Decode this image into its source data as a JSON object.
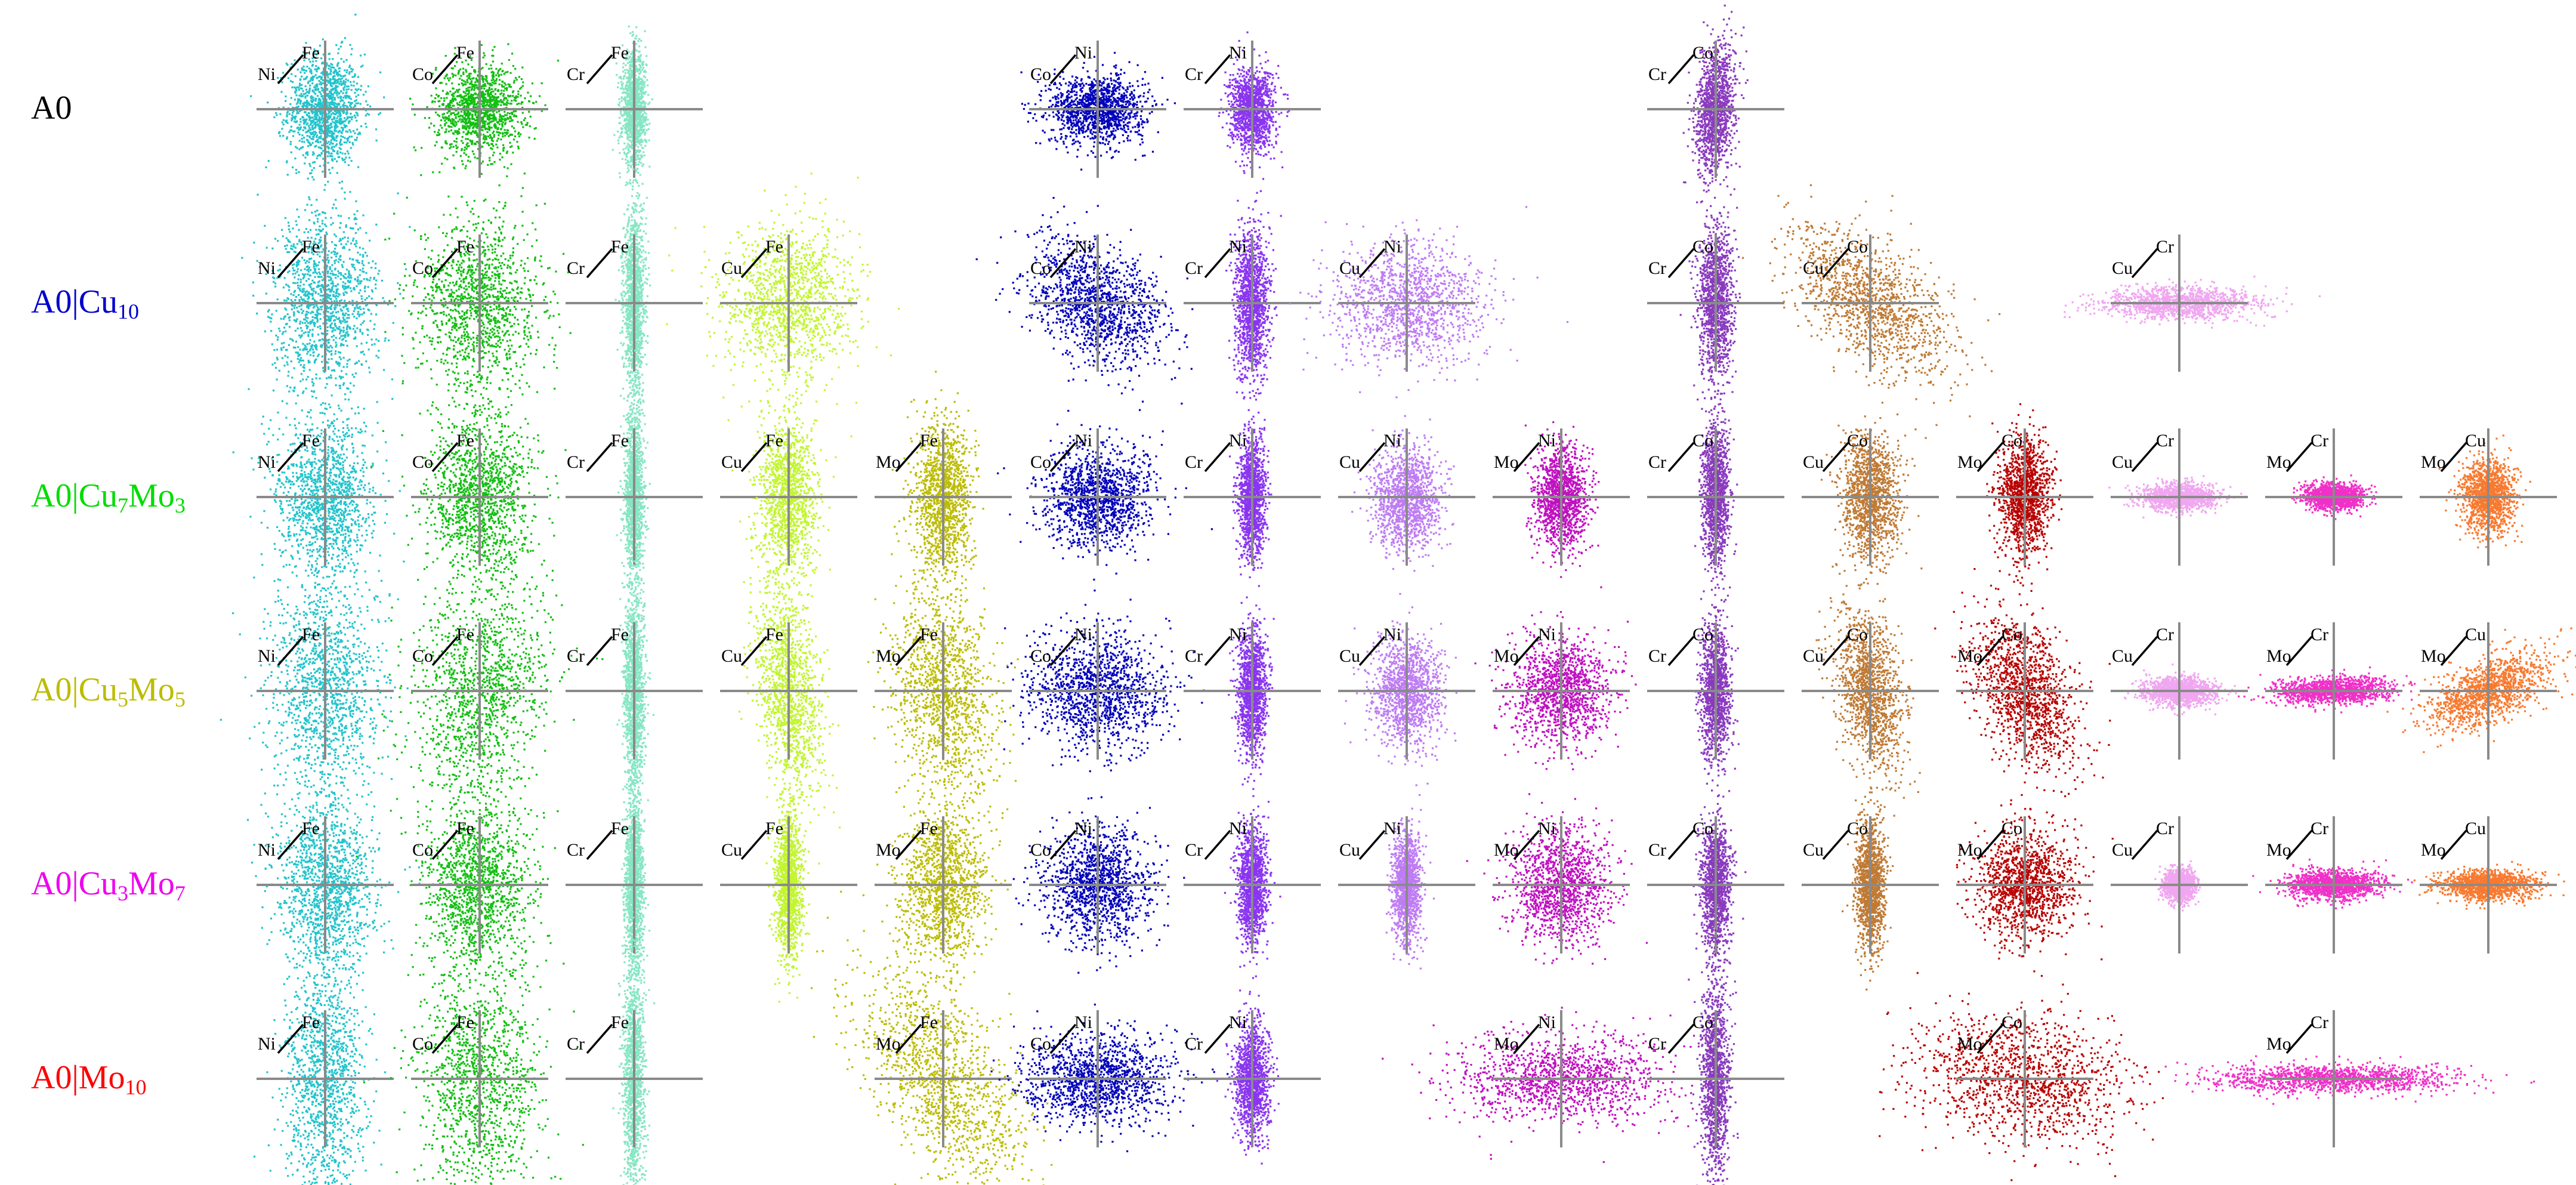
{
  "chart_data": {
    "type": "scatter",
    "description_note": "",
    "columns": [
      {
        "pair": "Fe-Ni",
        "x_label": "Ni",
        "y_label": "Fe",
        "color": "#22c4cc"
      },
      {
        "pair": "Fe-Co",
        "x_label": "Co",
        "y_label": "Fe",
        "color": "#12bf12"
      },
      {
        "pair": "Fe-Cr",
        "x_label": "Cr",
        "y_label": "Fe",
        "color": "#86e6c4"
      },
      {
        "pair": "Fe-Cu",
        "x_label": "Cu",
        "y_label": "Fe",
        "color": "#c2f532"
      },
      {
        "pair": "Fe-Mo",
        "x_label": "Mo",
        "y_label": "Fe",
        "color": "#bcbc00"
      },
      {
        "pair": "Ni-Co",
        "x_label": "Co",
        "y_label": "Ni",
        "color": "#0000bb"
      },
      {
        "pair": "Ni-Cr",
        "x_label": "Cr",
        "y_label": "Ni",
        "color": "#8a35f0"
      },
      {
        "pair": "Ni-Cu",
        "x_label": "Cu",
        "y_label": "Ni",
        "color": "#be7cf3"
      },
      {
        "pair": "Ni-Mo",
        "x_label": "Mo",
        "y_label": "Ni",
        "color": "#c010c0"
      },
      {
        "pair": "Co-Cr",
        "x_label": "Cr",
        "y_label": "Co",
        "color": "#8a3abf"
      },
      {
        "pair": "Co-Cu",
        "x_label": "Cu",
        "y_label": "Co",
        "color": "#bf7a35"
      },
      {
        "pair": "Co-Mo",
        "x_label": "Mo",
        "y_label": "Co",
        "color": "#b80000"
      },
      {
        "pair": "Cr-Cu",
        "x_label": "Cu",
        "y_label": "Cr",
        "color": "#f0a6f0"
      },
      {
        "pair": "Cr-Mo",
        "x_label": "Mo",
        "y_label": "Cr",
        "color": "#f030c8"
      },
      {
        "pair": "Cu-Mo",
        "x_label": "Mo",
        "y_label": "Cu",
        "color": "#f77a30"
      }
    ],
    "rows": [
      {
        "label": {
          "base": "A0",
          "parts": []
        },
        "color": "#000000",
        "plots": [
          {
            "col": 0,
            "sx": 0.28,
            "sy": 0.42,
            "rho": 0.0
          },
          {
            "col": 1,
            "sx": 0.33,
            "sy": 0.34,
            "rho": 0.0
          },
          {
            "col": 2,
            "sx": 0.09,
            "sy": 0.42,
            "rho": 0.0
          },
          {
            "col": 5,
            "sx": 0.36,
            "sy": 0.26,
            "rho": 0.0
          },
          {
            "col": 6,
            "sx": 0.17,
            "sy": 0.31,
            "rho": 0.0
          },
          {
            "col": 9,
            "sx": 0.15,
            "sy": 0.48,
            "rho": 0.25
          }
        ]
      },
      {
        "label": {
          "base": "A0|",
          "parts": [
            [
              "Cu",
              "10"
            ]
          ]
        },
        "color": "#0000cc",
        "plots": [
          {
            "col": 0,
            "sx": 0.4,
            "sy": 0.68,
            "rho": 0.0
          },
          {
            "col": 1,
            "sx": 0.46,
            "sy": 0.68,
            "rho": 0.0
          },
          {
            "col": 2,
            "sx": 0.08,
            "sy": 0.68,
            "rho": 0.0
          },
          {
            "col": 3,
            "sx": 0.5,
            "sy": 0.6,
            "rho": 0.05
          },
          {
            "col": 5,
            "sx": 0.52,
            "sy": 0.46,
            "rho": -0.3
          },
          {
            "col": 6,
            "sx": 0.13,
            "sy": 0.56,
            "rho": 0.0
          },
          {
            "col": 7,
            "sx": 0.58,
            "sy": 0.46,
            "rho": 0.0
          },
          {
            "col": 9,
            "sx": 0.13,
            "sy": 0.58,
            "rho": 0.0
          },
          {
            "col": 10,
            "sx": 0.6,
            "sy": 0.58,
            "rho": -0.55
          },
          {
            "col": 12,
            "sx": 0.58,
            "sy": 0.12,
            "rho": 0.0
          }
        ]
      },
      {
        "label": {
          "base": "A0|",
          "parts": [
            [
              "Cu",
              "7"
            ],
            [
              "Mo",
              "3"
            ]
          ]
        },
        "color": "#00dd00",
        "plots": [
          {
            "col": 0,
            "sx": 0.36,
            "sy": 0.6,
            "rho": 0.0
          },
          {
            "col": 1,
            "sx": 0.4,
            "sy": 0.62,
            "rho": 0.0
          },
          {
            "col": 2,
            "sx": 0.07,
            "sy": 0.62,
            "rho": 0.0
          },
          {
            "col": 3,
            "sx": 0.22,
            "sy": 0.6,
            "rho": 0.0
          },
          {
            "col": 4,
            "sx": 0.22,
            "sy": 0.6,
            "rho": 0.0
          },
          {
            "col": 5,
            "sx": 0.42,
            "sy": 0.38,
            "rho": 0.0
          },
          {
            "col": 6,
            "sx": 0.1,
            "sy": 0.45,
            "rho": 0.0
          },
          {
            "col": 7,
            "sx": 0.25,
            "sy": 0.38,
            "rho": 0.0
          },
          {
            "col": 8,
            "sx": 0.2,
            "sy": 0.38,
            "rho": 0.0
          },
          {
            "col": 9,
            "sx": 0.1,
            "sy": 0.5,
            "rho": 0.0
          },
          {
            "col": 10,
            "sx": 0.22,
            "sy": 0.48,
            "rho": 0.0
          },
          {
            "col": 11,
            "sx": 0.2,
            "sy": 0.45,
            "rho": 0.0
          },
          {
            "col": 12,
            "sx": 0.28,
            "sy": 0.1,
            "rho": 0.0
          },
          {
            "col": 13,
            "sx": 0.22,
            "sy": 0.1,
            "rho": 0.0
          },
          {
            "col": 14,
            "sx": 0.2,
            "sy": 0.28,
            "rho": 0.0
          }
        ]
      },
      {
        "label": {
          "base": "A0|",
          "parts": [
            [
              "Cu",
              "5"
            ],
            [
              "Mo",
              "5"
            ]
          ]
        },
        "color": "#bcbc00",
        "plots": [
          {
            "col": 0,
            "sx": 0.42,
            "sy": 0.82,
            "rho": 0.0
          },
          {
            "col": 1,
            "sx": 0.52,
            "sy": 0.82,
            "rho": 0.2
          },
          {
            "col": 2,
            "sx": 0.08,
            "sy": 0.78,
            "rho": 0.0
          },
          {
            "col": 3,
            "sx": 0.25,
            "sy": 0.78,
            "rho": -0.35
          },
          {
            "col": 4,
            "sx": 0.38,
            "sy": 0.8,
            "rho": -0.25
          },
          {
            "col": 5,
            "sx": 0.5,
            "sy": 0.46,
            "rho": 0.0
          },
          {
            "col": 6,
            "sx": 0.11,
            "sy": 0.46,
            "rho": 0.0
          },
          {
            "col": 7,
            "sx": 0.26,
            "sy": 0.42,
            "rho": 0.0
          },
          {
            "col": 8,
            "sx": 0.38,
            "sy": 0.42,
            "rho": 0.0
          },
          {
            "col": 9,
            "sx": 0.11,
            "sy": 0.52,
            "rho": 0.0
          },
          {
            "col": 10,
            "sx": 0.26,
            "sy": 0.62,
            "rho": -0.35
          },
          {
            "col": 11,
            "sx": 0.4,
            "sy": 0.58,
            "rho": -0.45
          },
          {
            "col": 12,
            "sx": 0.26,
            "sy": 0.11,
            "rho": 0.0
          },
          {
            "col": 13,
            "sx": 0.44,
            "sy": 0.1,
            "rho": 0.15
          },
          {
            "col": 14,
            "sx": 0.46,
            "sy": 0.28,
            "rho": 0.55
          }
        ]
      },
      {
        "label": {
          "base": "A0|",
          "parts": [
            [
              "Cu",
              "3"
            ],
            [
              "Mo",
              "7"
            ]
          ]
        },
        "color": "#ee00ee",
        "plots": [
          {
            "col": 0,
            "sx": 0.37,
            "sy": 0.62,
            "rho": 0.0
          },
          {
            "col": 1,
            "sx": 0.4,
            "sy": 0.62,
            "rho": 0.0
          },
          {
            "col": 2,
            "sx": 0.07,
            "sy": 0.62,
            "rho": 0.0
          },
          {
            "col": 3,
            "sx": 0.1,
            "sy": 0.55,
            "rho": 0.0
          },
          {
            "col": 4,
            "sx": 0.32,
            "sy": 0.62,
            "rho": 0.0
          },
          {
            "col": 5,
            "sx": 0.4,
            "sy": 0.42,
            "rho": 0.0
          },
          {
            "col": 6,
            "sx": 0.11,
            "sy": 0.45,
            "rho": 0.0
          },
          {
            "col": 7,
            "sx": 0.11,
            "sy": 0.42,
            "rho": 0.0
          },
          {
            "col": 8,
            "sx": 0.38,
            "sy": 0.42,
            "rho": 0.0
          },
          {
            "col": 9,
            "sx": 0.11,
            "sy": 0.5,
            "rho": 0.0
          },
          {
            "col": 10,
            "sx": 0.11,
            "sy": 0.5,
            "rho": 0.0
          },
          {
            "col": 11,
            "sx": 0.38,
            "sy": 0.42,
            "rho": 0.0
          },
          {
            "col": 12,
            "sx": 0.12,
            "sy": 0.12,
            "rho": 0.0
          },
          {
            "col": 13,
            "sx": 0.36,
            "sy": 0.11,
            "rho": 0.0
          },
          {
            "col": 14,
            "sx": 0.36,
            "sy": 0.11,
            "rho": 0.0
          }
        ]
      },
      {
        "label": {
          "base": "A0|",
          "parts": [
            [
              "Mo",
              "10"
            ]
          ]
        },
        "color": "#ff0000",
        "plots": [
          {
            "col": 0,
            "sx": 0.3,
            "sy": 0.92,
            "rho": 0.0
          },
          {
            "col": 1,
            "sx": 0.46,
            "sy": 0.92,
            "rho": 0.0
          },
          {
            "col": 2,
            "sx": 0.08,
            "sy": 0.92,
            "rho": 0.0
          },
          {
            "col": 4,
            "sx": 0.62,
            "sy": 0.82,
            "rho": -0.55
          },
          {
            "col": 5,
            "sx": 0.56,
            "sy": 0.34,
            "rho": 0.0
          },
          {
            "col": 6,
            "sx": 0.13,
            "sy": 0.42,
            "rho": 0.0
          },
          {
            "col": 8,
            "sx": 0.8,
            "sy": 0.32,
            "rho": 0.0
          },
          {
            "col": 9,
            "sx": 0.11,
            "sy": 0.78,
            "rho": 0.0
          },
          {
            "col": 11,
            "sx": 0.8,
            "sy": 0.48,
            "rho": -0.15
          },
          {
            "col": 13,
            "sx": 0.92,
            "sy": 0.11,
            "rho": 0.0
          }
        ]
      }
    ]
  }
}
